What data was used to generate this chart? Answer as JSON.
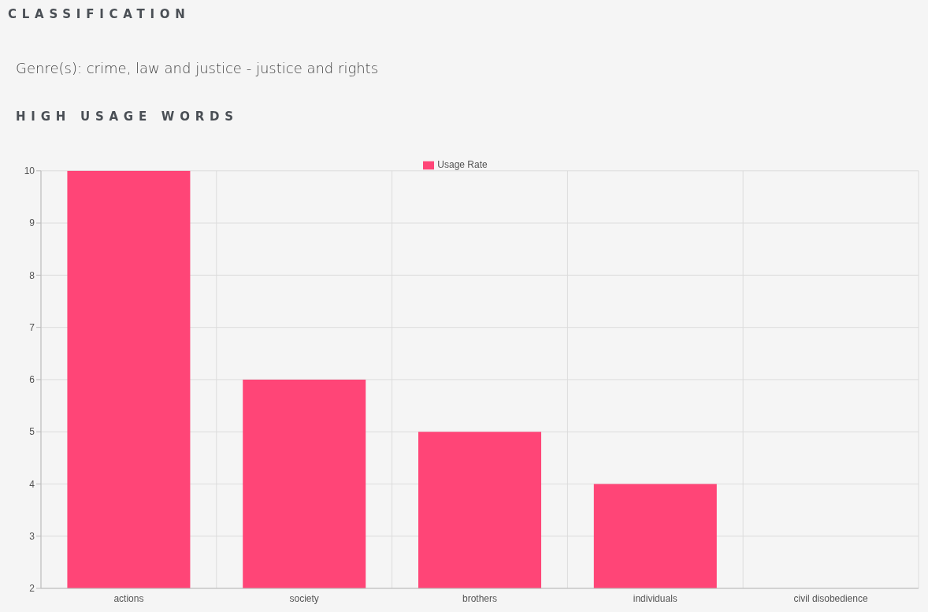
{
  "chart_data": {
    "type": "bar",
    "title": "HIGH USAGE WORDS",
    "annotations": [
      "CLASSIFICATION",
      "Genre(s): crime, law and justice - justice and rights"
    ],
    "categories": [
      "actions",
      "society",
      "brothers",
      "individuals",
      "civil disobedience"
    ],
    "series": [
      {
        "name": "Usage Rate",
        "color": "#ff4577",
        "values": [
          10,
          6,
          5,
          4,
          2
        ]
      }
    ],
    "ylim": [
      2,
      10
    ],
    "yticks": [
      2,
      3,
      4,
      5,
      6,
      7,
      8,
      9,
      10
    ],
    "grid": true,
    "legend": "top"
  }
}
